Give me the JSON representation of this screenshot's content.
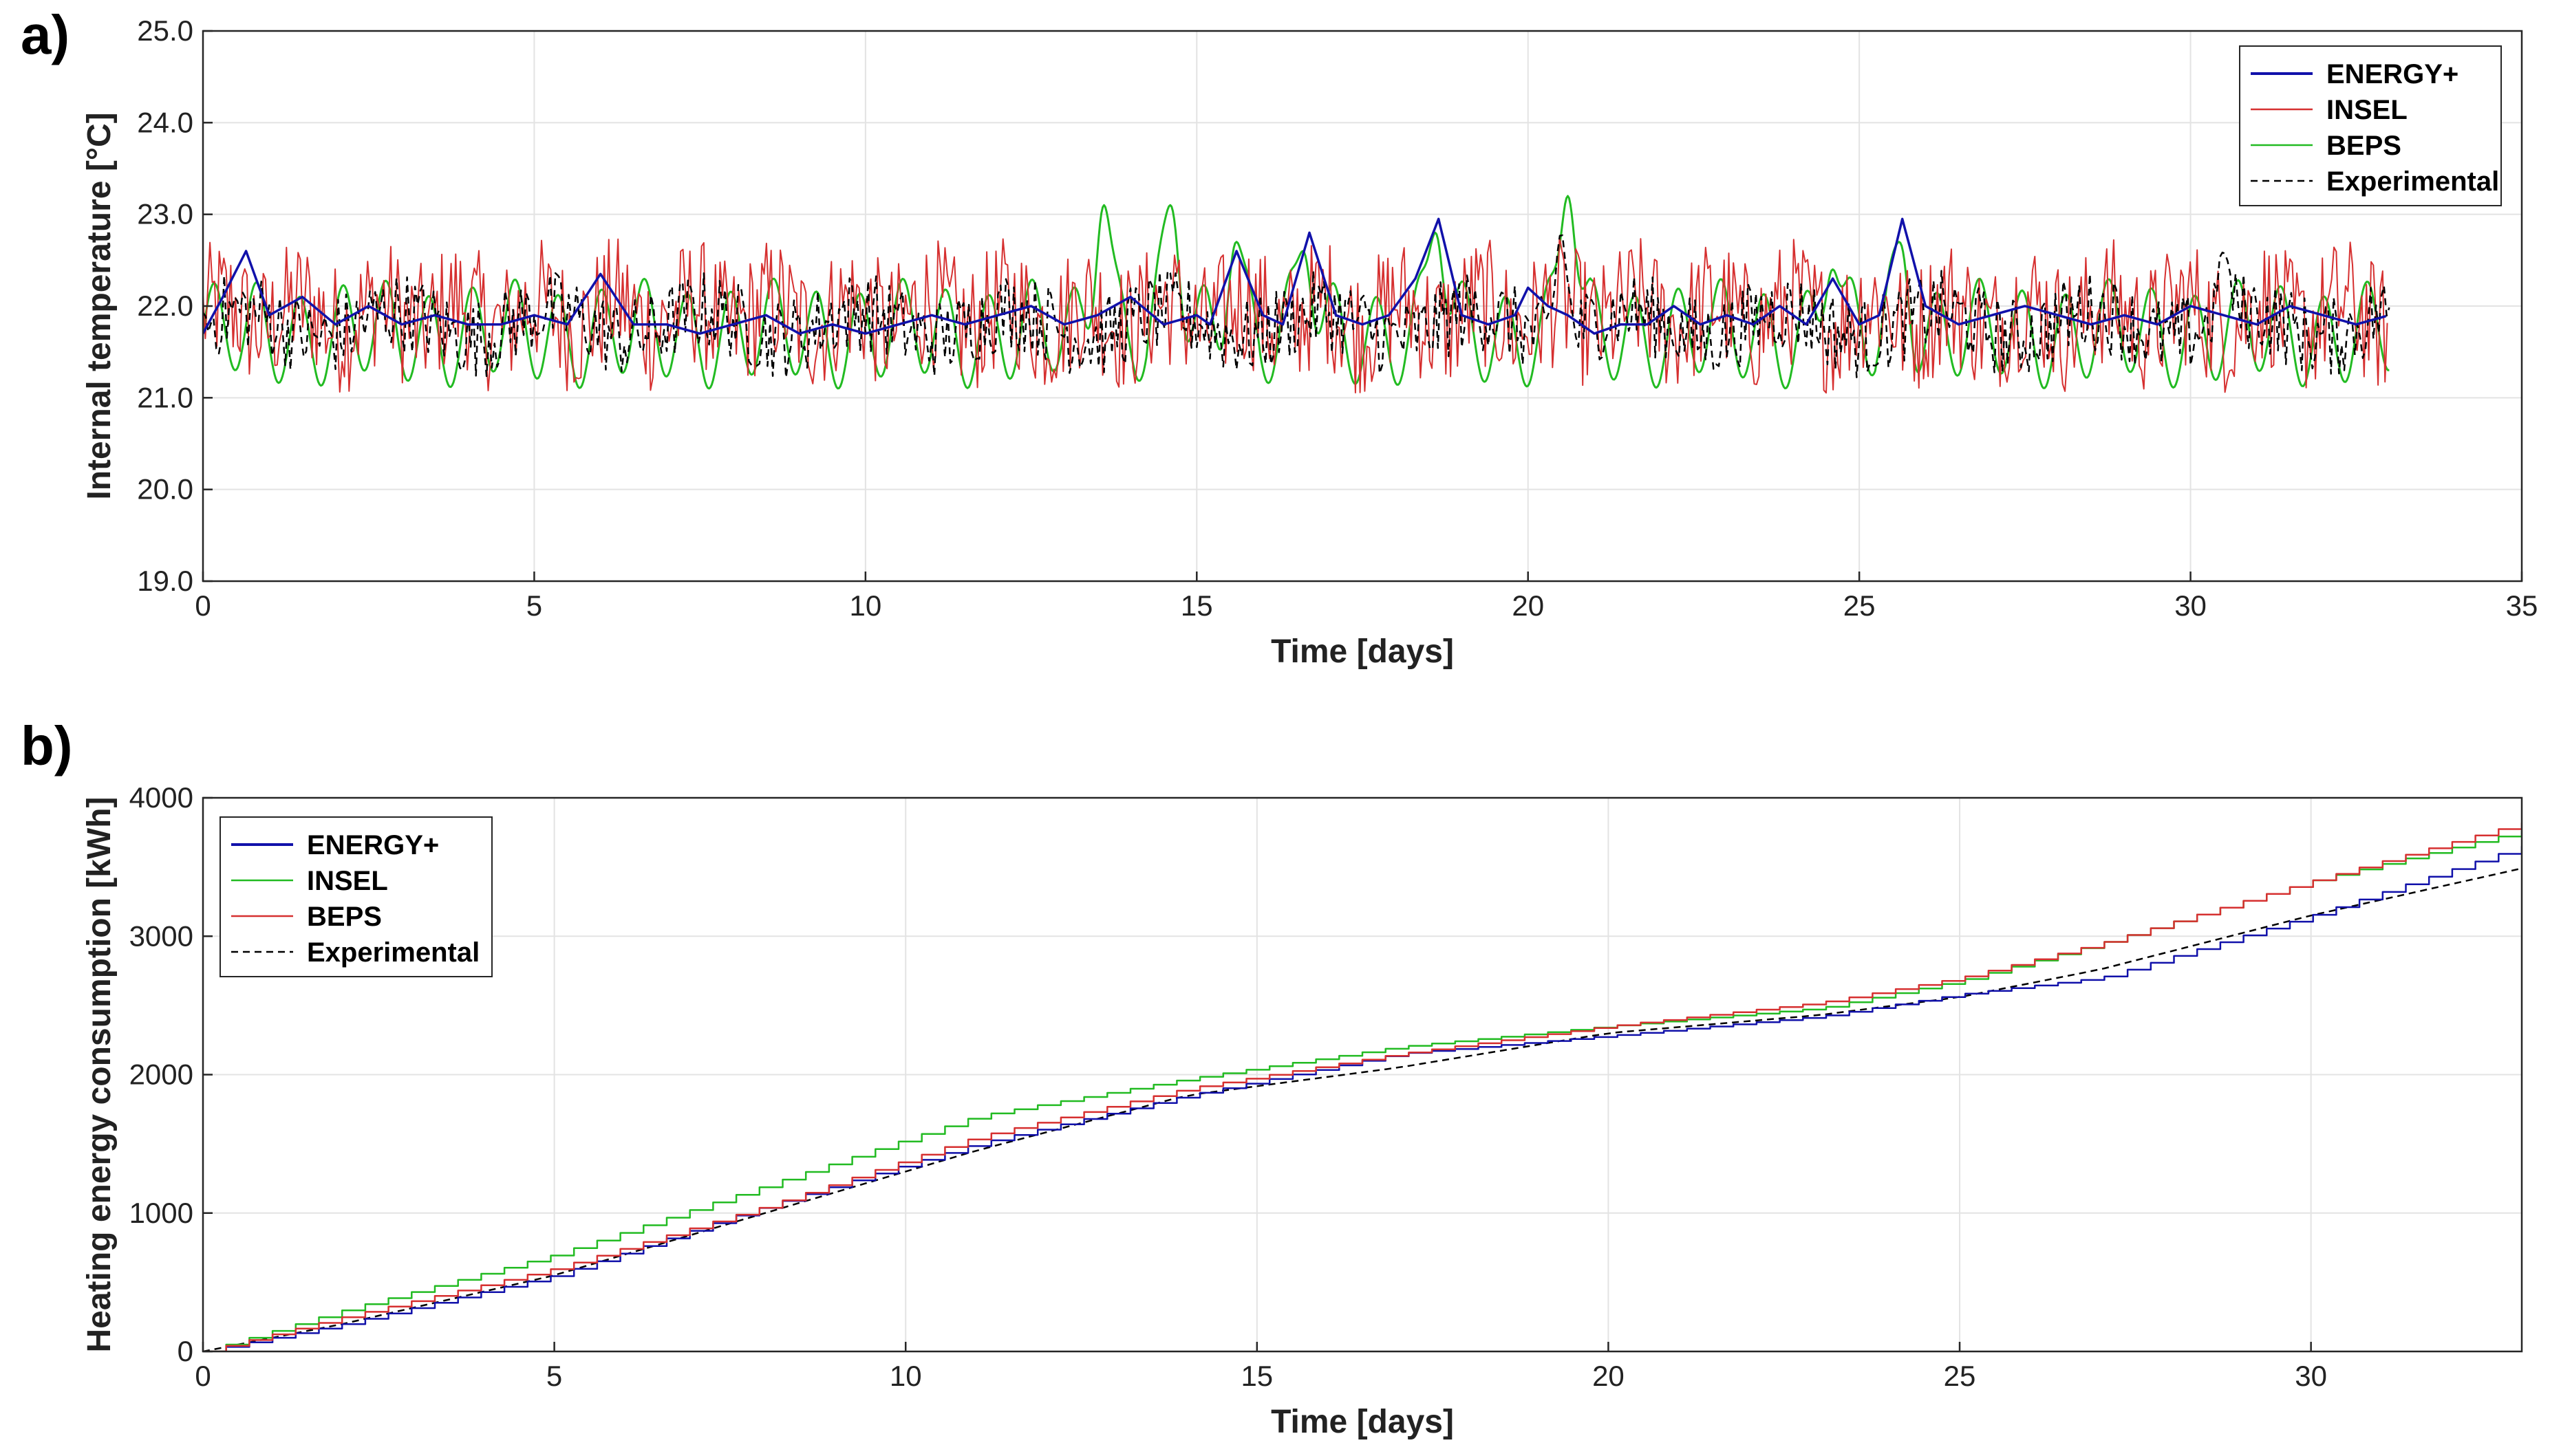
{
  "chart_data": [
    {
      "panel_label": "a)",
      "type": "line",
      "xlabel": "Time [days]",
      "ylabel": "Internal temperature [°C]",
      "xlim": [
        0,
        35
      ],
      "ylim": [
        19.0,
        25.0
      ],
      "xticks": [
        0,
        5,
        10,
        15,
        20,
        25,
        30,
        35
      ],
      "yticks": [
        19.0,
        20.0,
        21.0,
        22.0,
        23.0,
        24.0,
        25.0
      ],
      "ytick_labels": [
        "19.0",
        "20.0",
        "21.0",
        "22.0",
        "23.0",
        "24.0",
        "25.0"
      ],
      "grid": true,
      "legend_position": "top-right",
      "series": [
        {
          "name": "ENERGY+",
          "color": "#1111aa",
          "style": "solid",
          "x": [
            0,
            0.3,
            0.65,
            1,
            1.5,
            2,
            2.5,
            3,
            3.5,
            4,
            4.5,
            5,
            5.5,
            6,
            6.5,
            7,
            7.5,
            8,
            8.5,
            9,
            9.5,
            10,
            10.5,
            11,
            11.5,
            12,
            12.5,
            13,
            13.5,
            14,
            14.5,
            15,
            15.2,
            15.6,
            16,
            16.3,
            16.7,
            17.1,
            17.5,
            17.9,
            18.3,
            18.65,
            19,
            19.4,
            19.8,
            20,
            20.3,
            20.6,
            21,
            21.4,
            21.8,
            22.2,
            22.6,
            23,
            23.4,
            23.8,
            24.2,
            24.6,
            25,
            25.3,
            25.65,
            26,
            26.5,
            27,
            27.5,
            28,
            28.5,
            29,
            29.5,
            30,
            30.5,
            31,
            31.5,
            32,
            32.5,
            33
          ],
          "y": [
            21.7,
            22.1,
            22.6,
            21.9,
            22.1,
            21.8,
            22.0,
            21.8,
            21.9,
            21.8,
            21.8,
            21.9,
            21.8,
            22.35,
            21.8,
            21.8,
            21.7,
            21.8,
            21.9,
            21.7,
            21.8,
            21.7,
            21.8,
            21.9,
            21.8,
            21.9,
            22.0,
            21.8,
            21.9,
            22.1,
            21.8,
            21.9,
            21.8,
            22.6,
            21.9,
            21.8,
            22.8,
            21.9,
            21.8,
            21.9,
            22.3,
            22.95,
            21.9,
            21.8,
            21.9,
            22.2,
            22.0,
            21.9,
            21.7,
            21.8,
            21.8,
            22.0,
            21.8,
            21.9,
            21.8,
            22.0,
            21.8,
            22.3,
            21.8,
            21.9,
            22.95,
            22.0,
            21.8,
            21.9,
            22.0,
            21.9,
            21.8,
            21.9,
            21.8,
            22.0,
            21.9,
            21.8,
            22.0,
            21.9,
            21.8,
            21.9
          ]
        },
        {
          "name": "INSEL",
          "color": "#d63030",
          "style": "solid",
          "mean": 21.9,
          "amplitude": 0.45,
          "noise": "high-frequency",
          "x_range": [
            0,
            33
          ]
        },
        {
          "name": "BEPS",
          "color": "#22bb22",
          "style": "solid",
          "mean": 21.7,
          "amplitude": 0.5,
          "period_days": 0.65,
          "x_range": [
            0,
            33
          ],
          "peaks": [
            {
              "x": 13.6,
              "y": 23.1
            },
            {
              "x": 14.6,
              "y": 23.1
            },
            {
              "x": 15.6,
              "y": 22.7
            },
            {
              "x": 16.6,
              "y": 22.6
            },
            {
              "x": 18.6,
              "y": 22.8
            },
            {
              "x": 20.6,
              "y": 23.2
            },
            {
              "x": 24.6,
              "y": 22.4
            },
            {
              "x": 25.6,
              "y": 22.7
            }
          ]
        },
        {
          "name": "Experimental",
          "color": "#000000",
          "style": "dashed",
          "mean": 21.8,
          "amplitude": 0.4,
          "x_range": [
            0,
            33
          ],
          "peaks": [
            {
              "x": 20.5,
              "y": 22.8
            },
            {
              "x": 30.5,
              "y": 22.6
            }
          ]
        }
      ]
    },
    {
      "panel_label": "b)",
      "type": "line",
      "xlabel": "Time [days]",
      "ylabel": "Heating energy consumption [kWh]",
      "xlim": [
        0,
        33
      ],
      "ylim": [
        0,
        4000
      ],
      "xticks": [
        0,
        5,
        10,
        15,
        20,
        25,
        30
      ],
      "yticks": [
        0,
        1000,
        2000,
        3000,
        4000
      ],
      "ytick_labels": [
        "0",
        "1000",
        "2000",
        "3000",
        "4000"
      ],
      "grid": true,
      "legend_position": "top-left",
      "series": [
        {
          "name": "ENERGY+",
          "color": "#1111aa",
          "style": "solid",
          "x": [
            0,
            2,
            5,
            8,
            11,
            14,
            17,
            20,
            23,
            25,
            27,
            30,
            33
          ],
          "y": [
            0,
            200,
            550,
            1050,
            1500,
            1850,
            2150,
            2280,
            2420,
            2580,
            2700,
            3150,
            3650
          ]
        },
        {
          "name": "INSEL",
          "color": "#22bb22",
          "style": "solid",
          "x": [
            0,
            2,
            5,
            8,
            11,
            14,
            17,
            20,
            23,
            25,
            27,
            30,
            33
          ],
          "y": [
            0,
            300,
            700,
            1200,
            1700,
            1970,
            2200,
            2350,
            2480,
            2680,
            2950,
            3400,
            3760
          ]
        },
        {
          "name": "BEPS",
          "color": "#d63030",
          "style": "solid",
          "x": [
            0,
            2,
            5,
            8,
            11,
            14,
            17,
            20,
            23,
            25,
            27,
            30,
            33
          ],
          "y": [
            0,
            250,
            600,
            1050,
            1550,
            1900,
            2150,
            2350,
            2520,
            2700,
            2950,
            3400,
            3820
          ]
        },
        {
          "name": "Experimental",
          "color": "#000000",
          "style": "dashed",
          "x": [
            0,
            2,
            5,
            8,
            11,
            14,
            17,
            20,
            23,
            25,
            27,
            30,
            33
          ],
          "y": [
            0,
            200,
            550,
            1000,
            1450,
            1850,
            2050,
            2300,
            2430,
            2560,
            2760,
            3150,
            3490
          ]
        }
      ]
    }
  ]
}
